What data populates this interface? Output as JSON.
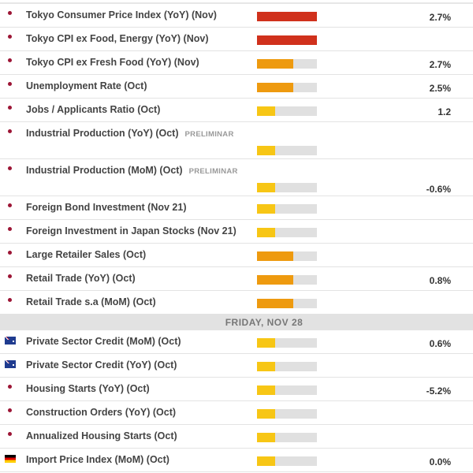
{
  "impact_colors": {
    "high": "#d0311c",
    "medium": "#ee9a0f",
    "low": "#f7c615",
    "empty": "#e0e0e0"
  },
  "sections": [
    {
      "header": "",
      "events": [
        {
          "flag": "jp",
          "title": "Tokyo Consumer Price Index (YoY) (Nov)",
          "tag": "",
          "impact": "high",
          "impact_level": 1.0,
          "value": "2.7%"
        },
        {
          "flag": "jp",
          "title": "Tokyo CPI ex Food, Energy (YoY) (Nov)",
          "tag": "",
          "impact": "high",
          "impact_level": 1.0,
          "value": ""
        },
        {
          "flag": "jp",
          "title": "Tokyo CPI ex Fresh Food (YoY) (Nov)",
          "tag": "",
          "impact": "medium",
          "impact_level": 0.6,
          "value": "2.7%"
        },
        {
          "flag": "jp",
          "title": "Unemployment Rate (Oct)",
          "tag": "",
          "impact": "medium",
          "impact_level": 0.6,
          "value": "2.5%"
        },
        {
          "flag": "jp",
          "title": "Jobs / Applicants Ratio (Oct)",
          "tag": "",
          "impact": "low",
          "impact_level": 0.3,
          "value": "1.2"
        },
        {
          "flag": "jp",
          "title": "Industrial Production (YoY) (Oct)",
          "tag": "PRELIMINAR",
          "impact": "low",
          "impact_level": 0.3,
          "value": ""
        },
        {
          "flag": "jp",
          "title": "Industrial Production (MoM) (Oct)",
          "tag": "PRELIMINAR",
          "impact": "low",
          "impact_level": 0.3,
          "value": "-0.6%"
        },
        {
          "flag": "jp",
          "title": "Foreign Bond Investment (Nov 21)",
          "tag": "",
          "impact": "low",
          "impact_level": 0.3,
          "value": ""
        },
        {
          "flag": "jp",
          "title": "Foreign Investment in Japan Stocks (Nov 21)",
          "tag": "",
          "impact": "low",
          "impact_level": 0.3,
          "value": ""
        },
        {
          "flag": "jp",
          "title": "Large Retailer Sales (Oct)",
          "tag": "",
          "impact": "medium",
          "impact_level": 0.6,
          "value": ""
        },
        {
          "flag": "jp",
          "title": "Retail Trade (YoY) (Oct)",
          "tag": "",
          "impact": "medium",
          "impact_level": 0.6,
          "value": "0.8%"
        },
        {
          "flag": "jp",
          "title": "Retail Trade s.a (MoM) (Oct)",
          "tag": "",
          "impact": "medium",
          "impact_level": 0.6,
          "value": ""
        }
      ]
    },
    {
      "header": "FRIDAY, NOV 28",
      "events": [
        {
          "flag": "au",
          "title": "Private Sector Credit (MoM) (Oct)",
          "tag": "",
          "impact": "low",
          "impact_level": 0.3,
          "value": "0.6%"
        },
        {
          "flag": "au",
          "title": "Private Sector Credit (YoY) (Oct)",
          "tag": "",
          "impact": "low",
          "impact_level": 0.3,
          "value": ""
        },
        {
          "flag": "jp",
          "title": "Housing Starts (YoY) (Oct)",
          "tag": "",
          "impact": "low",
          "impact_level": 0.3,
          "value": "-5.2%"
        },
        {
          "flag": "jp",
          "title": "Construction Orders (YoY) (Oct)",
          "tag": "",
          "impact": "low",
          "impact_level": 0.3,
          "value": ""
        },
        {
          "flag": "jp",
          "title": "Annualized Housing Starts (Oct)",
          "tag": "",
          "impact": "low",
          "impact_level": 0.3,
          "value": ""
        },
        {
          "flag": "de",
          "title": "Import Price Index (MoM) (Oct)",
          "tag": "",
          "impact": "low",
          "impact_level": 0.3,
          "value": "0.0%"
        }
      ]
    }
  ]
}
